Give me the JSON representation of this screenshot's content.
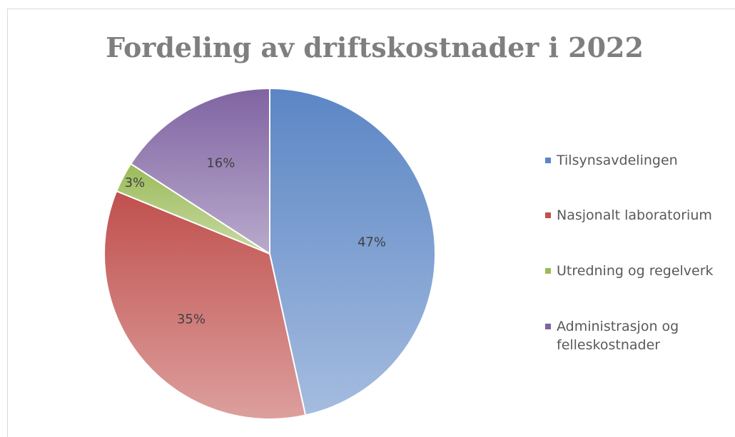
{
  "chart_data": {
    "type": "pie",
    "title": "Fordeling av driftskostnader i 2022",
    "categories": [
      "Tilsynsavdelingen",
      "Nasjonalt laboratorium",
      "Utredning og regelverk",
      "Administrasjon og felleskostnader"
    ],
    "values": [
      47,
      35,
      3,
      16
    ],
    "value_labels": [
      "47%",
      "35%",
      "3%",
      "16%"
    ],
    "colors": [
      "#5b86c5",
      "#c0504d",
      "#9bbb59",
      "#8064a2"
    ],
    "legend": "right"
  }
}
